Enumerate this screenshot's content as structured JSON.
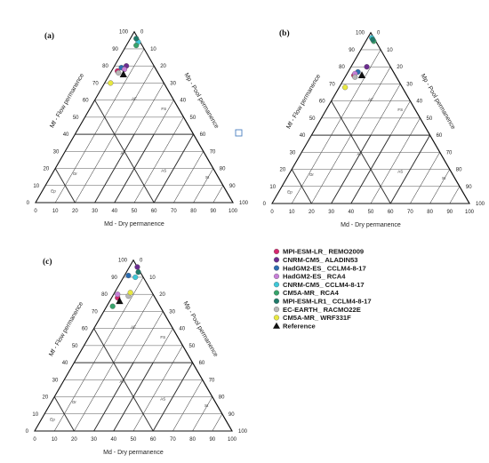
{
  "figure": {
    "region_labels": [
      "Ep",
      "Or",
      "AI",
      "AF",
      "FS",
      "AS",
      "St"
    ],
    "axis_labels": {
      "flow": "Mf - Flow permanence",
      "pool": "Mp - Pool permanence",
      "dry": "Md - Dry permanence"
    },
    "tick_labels": {
      "left": [
        "0",
        "10",
        "20",
        "30",
        "40",
        "50",
        "60",
        "70",
        "80",
        "90",
        "100"
      ],
      "bottom": [
        "100",
        "90",
        "80",
        "70",
        "60",
        "50",
        "40",
        "30",
        "20",
        "10",
        "0"
      ],
      "right": [
        "0",
        "10",
        "20",
        "30",
        "40",
        "50",
        "60",
        "70",
        "80",
        "90",
        "100"
      ]
    }
  },
  "legend": {
    "items": [
      {
        "label": "MPI-ESM-LR_ REMO2009",
        "color": "#d6286f",
        "shape": "circle"
      },
      {
        "label": "CNRM-CM5_ ALADIN53",
        "color": "#6b2c8f",
        "shape": "circle"
      },
      {
        "label": "HadGM2-ES_ CCLM4-8-17",
        "color": "#2c6cb0",
        "shape": "circle"
      },
      {
        "label": "HadGM2-ES_ RCA4",
        "color": "#c77fd8",
        "shape": "circle"
      },
      {
        "label": "CNRM-CM5_ CCLM4-8-17",
        "color": "#3ec7d8",
        "shape": "circle"
      },
      {
        "label": "CM5A-MR_ RCA4",
        "color": "#37a36b",
        "shape": "circle"
      },
      {
        "label": "MPI-ESM-LR1_ CCLM4-8-17",
        "color": "#1f7a6a",
        "shape": "circle"
      },
      {
        "label": "EC-EARTH_ RACMO22E",
        "color": "#b8b8b8",
        "shape": "circle"
      },
      {
        "label": "CM5A-MR_ WRF331F",
        "color": "#e8e840",
        "shape": "circle"
      },
      {
        "label": "Reference",
        "color": "#111111",
        "shape": "triangle"
      }
    ]
  },
  "chart_data": [
    {
      "type": "scatter",
      "panel": "(a)",
      "points": [
        {
          "series": "MPI-ESM-LR_ REMO2009",
          "flow": 77,
          "pool": 3
        },
        {
          "series": "CNRM-CM5_ ALADIN53",
          "flow": 80,
          "pool": 6
        },
        {
          "series": "HadGM2-ES_ CCLM4-8-17",
          "flow": 79,
          "pool": 4
        },
        {
          "series": "HadGM2-ES_ RCA4",
          "flow": 78,
          "pool": 6
        },
        {
          "series": "CNRM-CM5_ CCLM4-8-17",
          "flow": 94,
          "pool": 5
        },
        {
          "series": "CM5A-MR_ RCA4",
          "flow": 92,
          "pool": 5
        },
        {
          "series": "MPI-ESM-LR1_ CCLM4-8-17",
          "flow": 96,
          "pool": 3
        },
        {
          "series": "EC-EARTH_ RACMO22E",
          "flow": 76,
          "pool": 4
        },
        {
          "series": "CM5A-MR_ WRF331F",
          "flow": 70,
          "pool": 3
        },
        {
          "series": "Reference",
          "flow": 75,
          "pool": 7
        }
      ]
    },
    {
      "type": "scatter",
      "panel": "(b)",
      "points": [
        {
          "series": "MPI-ESM-LR_ REMO2009",
          "flow": 75,
          "pool": 4
        },
        {
          "series": "CNRM-CM5_ ALADIN53",
          "flow": 80,
          "pool": 8
        },
        {
          "series": "HadGM2-ES_ CCLM4-8-17",
          "flow": 77,
          "pool": 5
        },
        {
          "series": "HadGM2-ES_ RCA4",
          "flow": 76,
          "pool": 4
        },
        {
          "series": "CNRM-CM5_ CCLM4-8-17",
          "flow": 97,
          "pool": 2
        },
        {
          "series": "CM5A-MR_ RCA4",
          "flow": 95,
          "pool": 4
        },
        {
          "series": "MPI-ESM-LR1_ CCLM4-8-17",
          "flow": 96,
          "pool": 3
        },
        {
          "series": "EC-EARTH_ RACMO22E",
          "flow": 74,
          "pool": 5
        },
        {
          "series": "CM5A-MR_ WRF331F",
          "flow": 68,
          "pool": 3
        },
        {
          "series": "Reference",
          "flow": 75,
          "pool": 8
        }
      ]
    },
    {
      "type": "scatter",
      "panel": "(c)",
      "points": [
        {
          "series": "MPI-ESM-LR_ REMO2009",
          "flow": 78,
          "pool": 3
        },
        {
          "series": "CNRM-CM5_ ALADIN53",
          "flow": 96,
          "pool": 4
        },
        {
          "series": "HadGM2-ES_ CCLM4-8-17",
          "flow": 91,
          "pool": 2
        },
        {
          "series": "HadGM2-ES_ RCA4",
          "flow": 80,
          "pool": 2
        },
        {
          "series": "CNRM-CM5_ CCLM4-8-17",
          "flow": 90,
          "pool": 6
        },
        {
          "series": "CM5A-MR_ RCA4",
          "flow": 73,
          "pool": 3
        },
        {
          "series": "MPI-ESM-LR1_ CCLM4-8-17",
          "flow": 93,
          "pool": 6
        },
        {
          "series": "EC-EARTH_ RACMO22E",
          "flow": 79,
          "pool": 8
        },
        {
          "series": "CM5A-MR_ WRF331F",
          "flow": 81,
          "pool": 8
        },
        {
          "series": "Reference",
          "flow": 76,
          "pool": 5
        }
      ]
    }
  ]
}
